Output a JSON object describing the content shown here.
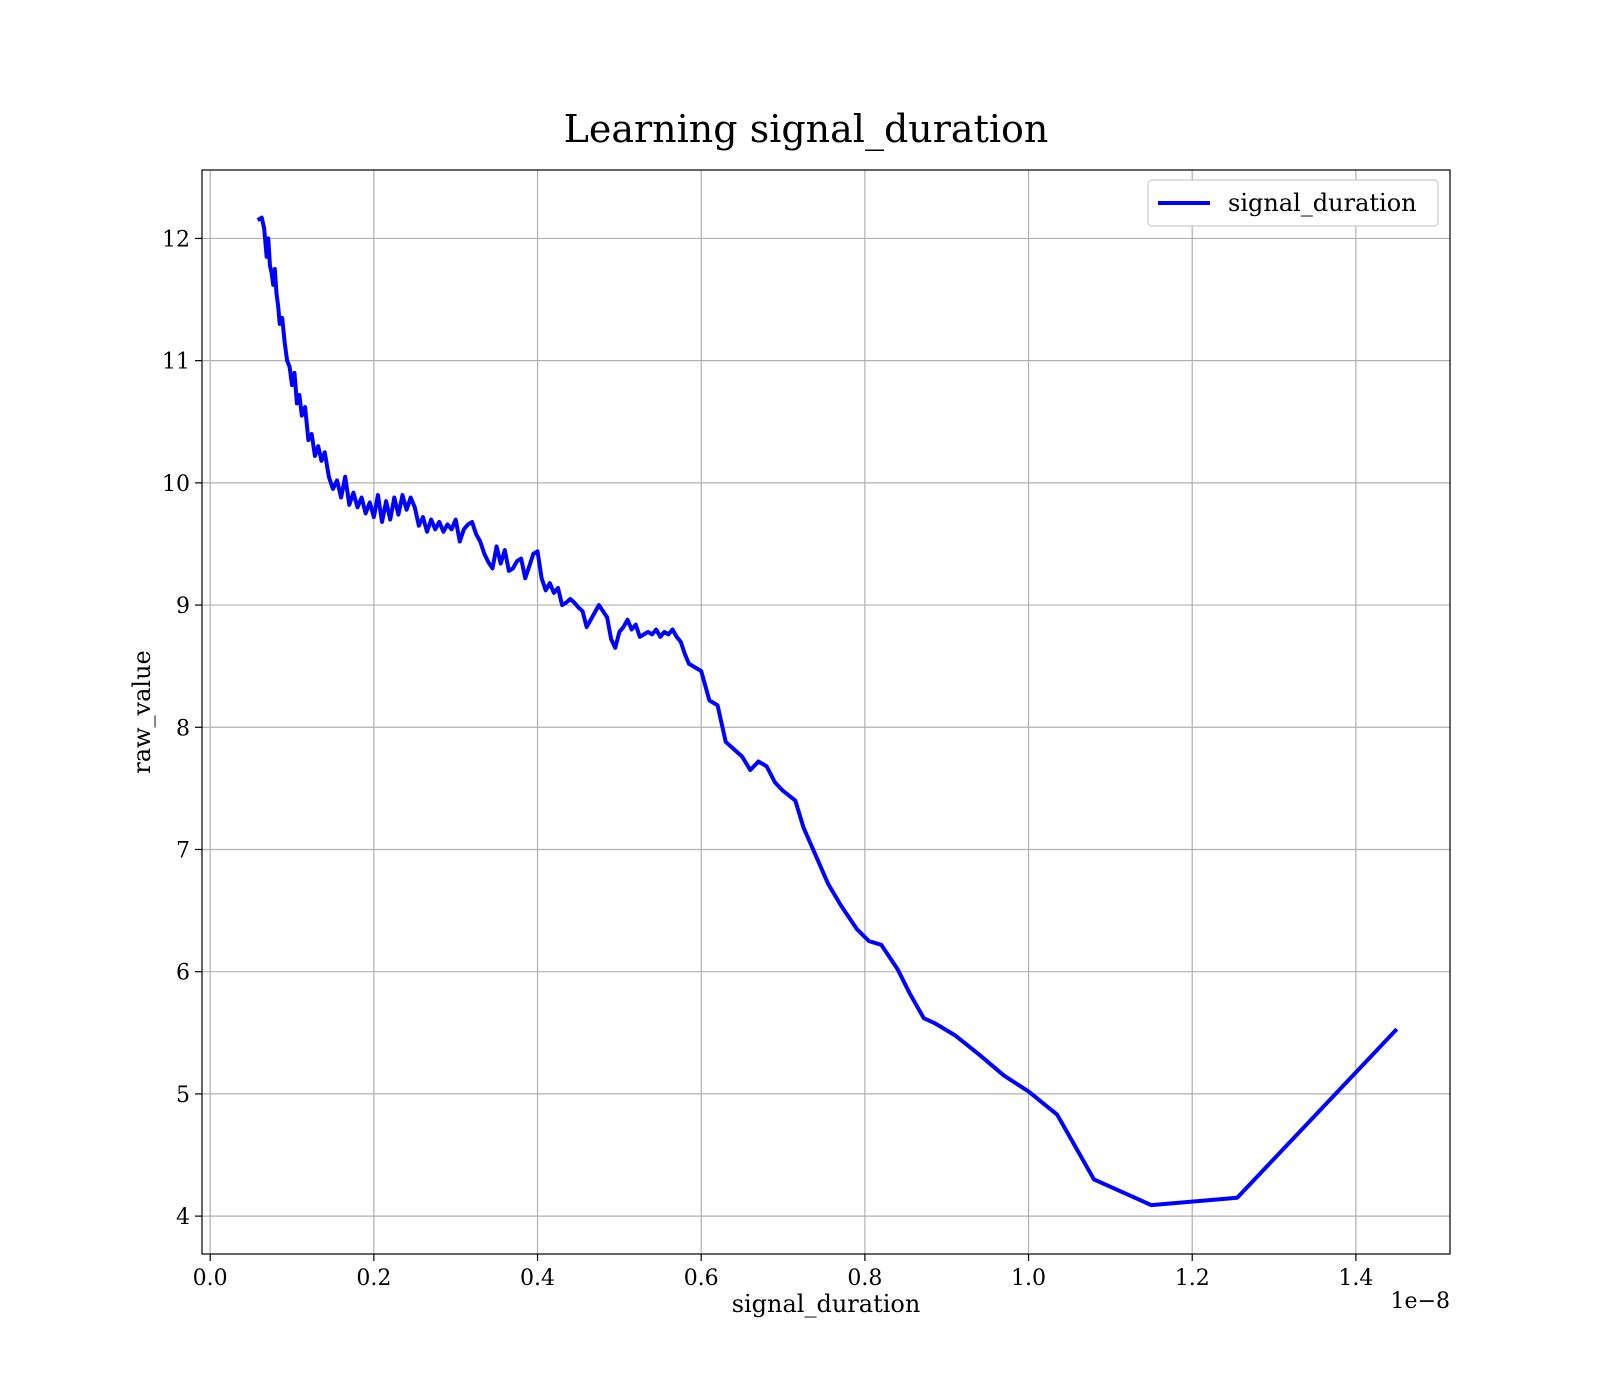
{
  "chart_data": {
    "type": "line",
    "title": "Learning signal_duration",
    "xlabel": "signal_duration",
    "ylabel": "raw_value",
    "x_offset_text": "1e−8",
    "x_multiplier": 1e-08,
    "xlim": [
      -1e-10,
      1.515e-08
    ],
    "ylim": [
      3.69,
      12.56
    ],
    "xticks": [
      0.0,
      2e-09,
      4e-09,
      6e-09,
      8e-09,
      1e-08,
      1.2e-08,
      1.4e-08
    ],
    "xtick_labels": [
      "0.0",
      "0.2",
      "0.4",
      "0.6",
      "0.8",
      "1.0",
      "1.2",
      "1.4"
    ],
    "yticks": [
      4,
      5,
      6,
      7,
      8,
      9,
      10,
      11,
      12
    ],
    "ytick_labels": [
      "4",
      "5",
      "6",
      "7",
      "8",
      "9",
      "10",
      "11",
      "12"
    ],
    "grid": true,
    "legend_position": "top-right",
    "series": [
      {
        "name": "signal_duration",
        "color": "#0000ff",
        "x": [
          5.8e-10,
          6.3e-10,
          6.6e-10,
          6.9e-10,
          7.1e-10,
          7.3e-10,
          7.5e-10,
          7.7e-10,
          7.9e-10,
          8.1e-10,
          8.3e-10,
          8.5e-10,
          8.8e-10,
          9.1e-10,
          9.4e-10,
          9.7e-10,
          1e-09,
          1.03e-09,
          1.06e-09,
          1.09e-09,
          1.12e-09,
          1.16e-09,
          1.2e-09,
          1.24e-09,
          1.28e-09,
          1.32e-09,
          1.36e-09,
          1.4e-09,
          1.45e-09,
          1.5e-09,
          1.55e-09,
          1.6e-09,
          1.65e-09,
          1.7e-09,
          1.75e-09,
          1.8e-09,
          1.85e-09,
          1.9e-09,
          1.95e-09,
          2e-09,
          2.05e-09,
          2.1e-09,
          2.15e-09,
          2.2e-09,
          2.25e-09,
          2.3e-09,
          2.35e-09,
          2.4e-09,
          2.45e-09,
          2.5e-09,
          2.55e-09,
          2.6e-09,
          2.65e-09,
          2.7e-09,
          2.75e-09,
          2.8e-09,
          2.85e-09,
          2.9e-09,
          2.95e-09,
          3e-09,
          3.05e-09,
          3.1e-09,
          3.15e-09,
          3.2e-09,
          3.25e-09,
          3.3e-09,
          3.35e-09,
          3.4e-09,
          3.45e-09,
          3.5e-09,
          3.55e-09,
          3.6e-09,
          3.65e-09,
          3.7e-09,
          3.75e-09,
          3.8e-09,
          3.85e-09,
          3.9e-09,
          3.95e-09,
          4e-09,
          4.05e-09,
          4.1e-09,
          4.15e-09,
          4.2e-09,
          4.25e-09,
          4.3e-09,
          4.35e-09,
          4.4e-09,
          4.45e-09,
          4.5e-09,
          4.55e-09,
          4.6e-09,
          4.65e-09,
          4.7e-09,
          4.75e-09,
          4.8e-09,
          4.85e-09,
          4.9e-09,
          4.95e-09,
          5e-09,
          5.05e-09,
          5.1e-09,
          5.15e-09,
          5.2e-09,
          5.25e-09,
          5.3e-09,
          5.35e-09,
          5.4e-09,
          5.45e-09,
          5.5e-09,
          5.55e-09,
          5.6e-09,
          5.65e-09,
          5.7e-09,
          5.75e-09,
          5.8e-09,
          5.85e-09,
          5.9e-09,
          5.95e-09,
          6e-09,
          6.1e-09,
          6.2e-09,
          6.3e-09,
          6.4e-09,
          6.5e-09,
          6.6e-09,
          6.7e-09,
          6.8e-09,
          6.9e-09,
          7e-09,
          7.15e-09,
          7.25e-09,
          7.4e-09,
          7.55e-09,
          7.7e-09,
          7.9e-09,
          8.05e-09,
          8.2e-09,
          8.4e-09,
          8.55e-09,
          8.72e-09,
          8.85e-09,
          9.1e-09,
          9.4e-09,
          9.7e-09,
          1e-08,
          1.035e-08,
          1.08e-08,
          1.15e-08,
          1.255e-08,
          1.45e-08
        ],
        "y": [
          12.15,
          12.17,
          12.08,
          11.85,
          12.0,
          11.78,
          11.72,
          11.62,
          11.75,
          11.55,
          11.45,
          11.3,
          11.35,
          11.15,
          11.0,
          10.95,
          10.8,
          10.9,
          10.65,
          10.72,
          10.55,
          10.62,
          10.35,
          10.4,
          10.22,
          10.3,
          10.18,
          10.25,
          10.05,
          9.95,
          10.02,
          9.88,
          10.05,
          9.82,
          9.92,
          9.8,
          9.88,
          9.75,
          9.84,
          9.72,
          9.9,
          9.68,
          9.85,
          9.7,
          9.88,
          9.74,
          9.9,
          9.78,
          9.88,
          9.8,
          9.65,
          9.72,
          9.6,
          9.7,
          9.62,
          9.68,
          9.6,
          9.66,
          9.62,
          9.7,
          9.52,
          9.62,
          9.66,
          9.68,
          9.58,
          9.52,
          9.42,
          9.35,
          9.3,
          9.48,
          9.34,
          9.45,
          9.28,
          9.3,
          9.36,
          9.38,
          9.22,
          9.32,
          9.42,
          9.44,
          9.22,
          9.12,
          9.18,
          9.1,
          9.14,
          9.0,
          9.02,
          9.05,
          9.02,
          8.98,
          8.95,
          8.82,
          8.88,
          8.94,
          9.0,
          8.95,
          8.9,
          8.72,
          8.65,
          8.78,
          8.82,
          8.88,
          8.8,
          8.84,
          8.74,
          8.76,
          8.78,
          8.76,
          8.8,
          8.74,
          8.78,
          8.76,
          8.8,
          8.74,
          8.7,
          8.6,
          8.52,
          8.5,
          8.48,
          8.46,
          8.22,
          8.18,
          7.88,
          7.82,
          7.76,
          7.65,
          7.72,
          7.68,
          7.55,
          7.48,
          7.4,
          7.18,
          6.95,
          6.72,
          6.55,
          6.35,
          6.25,
          6.22,
          6.02,
          5.82,
          5.62,
          5.58,
          5.48,
          5.32,
          5.15,
          5.02,
          4.83,
          4.3,
          4.09,
          4.15,
          5.53
        ]
      }
    ]
  }
}
